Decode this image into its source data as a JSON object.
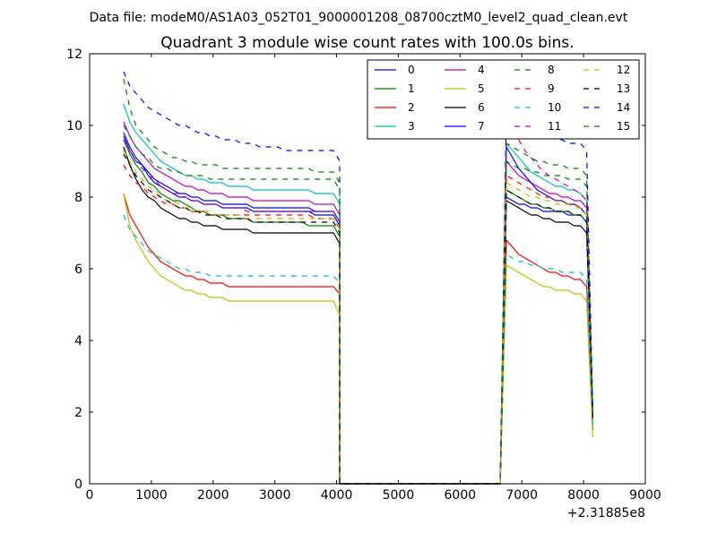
{
  "suptitle": "Data file: modeM0/AS1A03_052T01_9000001208_08700cztM0_level2_quad_clean.evt",
  "chart_data": {
    "type": "line",
    "title": "Quadrant 3 module wise count rates with 100.0s bins.",
    "xlabel": "",
    "ylabel": "",
    "xlim": [
      0,
      9000
    ],
    "ylim": [
      0,
      12
    ],
    "x_offset_text": "+2.31885e8",
    "x_ticks": [
      0,
      1000,
      2000,
      3000,
      4000,
      5000,
      6000,
      7000,
      8000,
      9000
    ],
    "x_tick_labels": [
      "0",
      "1000",
      "2000",
      "3000",
      "4000",
      "5000",
      "6000",
      "7000",
      "8000",
      "9000"
    ],
    "y_ticks": [
      0,
      2,
      4,
      6,
      8,
      10,
      12
    ],
    "y_tick_labels": [
      "0",
      "2",
      "4",
      "6",
      "8",
      "10",
      "12"
    ],
    "legend_position": "top-right",
    "legend_columns": 4,
    "time_grid": {
      "segment1": {
        "start": 550,
        "step": 100,
        "count": 36
      },
      "gap": {
        "start": 4050,
        "end": 6650,
        "value": 0
      },
      "segment2": {
        "start": 6650,
        "step": 100,
        "count": 15
      }
    },
    "series": [
      {
        "name": "0",
        "color": "#0000ff",
        "dash": "solid",
        "seg1": [
          9.7,
          9.3,
          9.0,
          8.9,
          8.6,
          8.4,
          8.3,
          8.2,
          8.1,
          8.0,
          8.0,
          7.9,
          7.9,
          7.8,
          7.8,
          7.8,
          7.7,
          7.7,
          7.7,
          7.7,
          7.7,
          7.6,
          7.6,
          7.6,
          7.6,
          7.6,
          7.6,
          7.6,
          7.6,
          7.6,
          7.6,
          7.5,
          7.5,
          7.5,
          7.5,
          7.2
        ],
        "seg2_start": 0,
        "seg2": [
          8.0,
          7.9,
          7.8,
          7.8,
          7.7,
          7.7,
          7.6,
          7.6,
          7.6,
          7.6,
          7.5,
          7.5,
          7.5,
          7.3,
          1.9
        ]
      },
      {
        "name": "1",
        "color": "#008000",
        "dash": "solid",
        "seg1": [
          9.6,
          9.2,
          8.9,
          8.7,
          8.4,
          8.3,
          8.1,
          8.0,
          7.9,
          7.9,
          7.8,
          7.7,
          7.6,
          7.6,
          7.5,
          7.5,
          7.5,
          7.4,
          7.4,
          7.4,
          7.4,
          7.3,
          7.3,
          7.3,
          7.3,
          7.3,
          7.3,
          7.3,
          7.3,
          7.3,
          7.2,
          7.2,
          7.2,
          7.2,
          7.2,
          6.9
        ],
        "seg2_start": 0,
        "seg2": [
          8.2,
          8.1,
          8.0,
          7.9,
          7.8,
          7.8,
          7.7,
          7.7,
          7.6,
          7.6,
          7.6,
          7.5,
          7.5,
          7.3,
          1.8
        ]
      },
      {
        "name": "2",
        "color": "#ff0000",
        "dash": "solid",
        "seg1": [
          8.1,
          7.5,
          7.2,
          6.9,
          6.6,
          6.4,
          6.2,
          6.1,
          6.0,
          5.9,
          5.8,
          5.8,
          5.7,
          5.7,
          5.6,
          5.6,
          5.6,
          5.5,
          5.5,
          5.5,
          5.5,
          5.5,
          5.5,
          5.5,
          5.5,
          5.5,
          5.5,
          5.5,
          5.5,
          5.5,
          5.5,
          5.5,
          5.5,
          5.5,
          5.5,
          5.3
        ],
        "seg2_start": 0,
        "seg2": [
          6.8,
          6.6,
          6.4,
          6.3,
          6.2,
          6.1,
          6.0,
          5.9,
          5.9,
          5.8,
          5.8,
          5.7,
          5.7,
          5.5,
          1.5
        ]
      },
      {
        "name": "3",
        "color": "#00bfbf",
        "dash": "solid",
        "seg1": [
          10.6,
          10.1,
          9.8,
          9.6,
          9.4,
          9.2,
          9.0,
          8.9,
          8.8,
          8.7,
          8.6,
          8.6,
          8.5,
          8.5,
          8.4,
          8.4,
          8.4,
          8.3,
          8.3,
          8.3,
          8.3,
          8.2,
          8.2,
          8.2,
          8.2,
          8.2,
          8.2,
          8.2,
          8.2,
          8.2,
          8.2,
          8.1,
          8.1,
          8.1,
          8.1,
          7.8
        ],
        "seg2_start": 0,
        "seg2": [
          9.5,
          9.3,
          9.1,
          8.9,
          8.7,
          8.6,
          8.5,
          8.4,
          8.3,
          8.3,
          8.2,
          8.2,
          8.1,
          7.9,
          2.0
        ]
      },
      {
        "name": "4",
        "color": "#bf00bf",
        "dash": "solid",
        "seg1": [
          10.1,
          9.7,
          9.4,
          9.2,
          9.0,
          8.8,
          8.7,
          8.6,
          8.5,
          8.4,
          8.3,
          8.3,
          8.2,
          8.2,
          8.1,
          8.1,
          8.1,
          8.0,
          8.0,
          8.0,
          8.0,
          7.9,
          7.9,
          7.9,
          7.9,
          7.9,
          7.9,
          7.9,
          7.9,
          7.9,
          7.9,
          7.8,
          7.8,
          7.8,
          7.8,
          7.5
        ],
        "seg2_start": 0,
        "seg2": [
          9.0,
          8.8,
          8.6,
          8.5,
          8.4,
          8.3,
          8.2,
          8.1,
          8.1,
          8.0,
          8.0,
          7.9,
          7.9,
          7.7,
          1.9
        ]
      },
      {
        "name": "5",
        "color": "#bfbf00",
        "dash": "solid",
        "seg1": [
          8.1,
          7.2,
          6.8,
          6.5,
          6.2,
          6.0,
          5.8,
          5.7,
          5.6,
          5.5,
          5.4,
          5.4,
          5.3,
          5.3,
          5.2,
          5.2,
          5.2,
          5.1,
          5.1,
          5.1,
          5.1,
          5.1,
          5.1,
          5.1,
          5.1,
          5.1,
          5.1,
          5.1,
          5.1,
          5.1,
          5.1,
          5.1,
          5.1,
          5.1,
          5.1,
          4.7
        ],
        "seg2_start": 0,
        "seg2": [
          6.1,
          6.0,
          5.9,
          5.8,
          5.7,
          5.6,
          5.5,
          5.5,
          5.4,
          5.4,
          5.4,
          5.3,
          5.3,
          5.1,
          1.3
        ]
      },
      {
        "name": "6",
        "color": "#000000",
        "dash": "solid",
        "seg1": [
          9.4,
          8.9,
          8.5,
          8.2,
          8.0,
          7.9,
          7.7,
          7.6,
          7.5,
          7.4,
          7.4,
          7.3,
          7.3,
          7.2,
          7.2,
          7.2,
          7.1,
          7.1,
          7.1,
          7.1,
          7.1,
          7.0,
          7.0,
          7.0,
          7.0,
          7.0,
          7.0,
          7.0,
          7.0,
          7.0,
          7.0,
          7.0,
          7.0,
          7.0,
          7.0,
          6.7
        ],
        "seg2_start": 0,
        "seg2": [
          7.9,
          7.8,
          7.7,
          7.6,
          7.5,
          7.5,
          7.4,
          7.4,
          7.3,
          7.3,
          7.3,
          7.2,
          7.2,
          7.0,
          1.8
        ]
      },
      {
        "name": "7",
        "color": "#0000ff",
        "dash": "solid",
        "seg1": [
          9.8,
          9.4,
          9.1,
          8.9,
          8.7,
          8.5,
          8.4,
          8.3,
          8.2,
          8.1,
          8.1,
          8.0,
          8.0,
          7.9,
          7.9,
          7.9,
          7.8,
          7.8,
          7.8,
          7.8,
          7.8,
          7.7,
          7.7,
          7.7,
          7.7,
          7.7,
          7.7,
          7.7,
          7.7,
          7.7,
          7.7,
          7.6,
          7.6,
          7.6,
          7.6,
          7.3
        ],
        "seg2_start": 0,
        "seg2": [
          9.4,
          9.1,
          8.8,
          8.6,
          8.4,
          8.2,
          8.1,
          8.0,
          7.9,
          7.9,
          7.8,
          7.8,
          7.7,
          7.5,
          1.9
        ]
      },
      {
        "name": "8",
        "color": "#008000",
        "dash": "dashed",
        "seg1": [
          10.0,
          9.7,
          9.4,
          9.2,
          9.1,
          8.9,
          8.8,
          8.8,
          8.7,
          8.7,
          8.6,
          8.6,
          8.6,
          8.6,
          8.5,
          8.5,
          8.5,
          8.5,
          8.5,
          8.5,
          8.5,
          8.5,
          8.5,
          8.5,
          8.5,
          8.5,
          8.5,
          8.5,
          8.5,
          8.5,
          8.5,
          8.5,
          8.5,
          8.5,
          8.5,
          8.2
        ],
        "seg2_start": 0,
        "seg2": [
          9.0,
          8.9,
          8.8,
          8.8,
          8.7,
          8.7,
          8.6,
          8.6,
          8.6,
          8.6,
          8.5,
          8.5,
          8.5,
          8.3,
          2.0
        ]
      },
      {
        "name": "9",
        "color": "#ff0000",
        "dash": "dashed",
        "seg1": [
          8.9,
          8.6,
          8.4,
          8.3,
          8.1,
          8.0,
          7.9,
          7.8,
          7.8,
          7.7,
          7.7,
          7.6,
          7.6,
          7.6,
          7.5,
          7.5,
          7.5,
          7.5,
          7.5,
          7.5,
          7.5,
          7.5,
          7.5,
          7.5,
          7.5,
          7.5,
          7.5,
          7.5,
          7.5,
          7.5,
          7.5,
          7.4,
          7.4,
          7.4,
          7.4,
          7.1
        ],
        "seg2_start": 0,
        "seg2": [
          8.6,
          8.5,
          8.4,
          8.3,
          8.2,
          8.1,
          8.0,
          8.0,
          7.9,
          7.9,
          7.8,
          7.8,
          7.7,
          7.5,
          1.8
        ]
      },
      {
        "name": "10",
        "color": "#00bfbf",
        "dash": "dashed",
        "seg1": [
          7.5,
          7.1,
          6.9,
          6.7,
          6.5,
          6.4,
          6.3,
          6.2,
          6.1,
          6.0,
          6.0,
          5.9,
          5.9,
          5.9,
          5.8,
          5.8,
          5.8,
          5.8,
          5.8,
          5.8,
          5.8,
          5.8,
          5.8,
          5.8,
          5.8,
          5.8,
          5.8,
          5.8,
          5.8,
          5.8,
          5.8,
          5.8,
          5.8,
          5.8,
          5.8,
          5.6
        ],
        "seg2_start": 0,
        "seg2": [
          6.4,
          6.3,
          6.2,
          6.2,
          6.1,
          6.1,
          6.0,
          6.0,
          6.0,
          5.9,
          5.9,
          5.9,
          5.9,
          5.7,
          1.6
        ]
      },
      {
        "name": "11",
        "color": "#bf00bf",
        "dash": "dashed",
        "seg1": [
          9.6,
          9.3,
          9.0,
          8.8,
          8.6,
          8.5,
          8.3,
          8.2,
          8.1,
          8.1,
          8.0,
          7.9,
          7.9,
          7.8,
          7.8,
          7.8,
          7.7,
          7.7,
          7.7,
          7.7,
          7.6,
          7.6,
          7.6,
          7.6,
          7.6,
          7.6,
          7.6,
          7.6,
          7.6,
          7.6,
          7.6,
          7.6,
          7.6,
          7.6,
          7.6,
          7.3
        ],
        "seg2_start": 0,
        "seg2": [
          10.2,
          9.9,
          9.6,
          9.3,
          9.1,
          8.9,
          8.7,
          8.6,
          8.5,
          8.4,
          8.3,
          8.2,
          8.1,
          7.9,
          2.0
        ]
      },
      {
        "name": "12",
        "color": "#bfbf00",
        "dash": "dashed",
        "seg1": [
          9.3,
          9.0,
          8.7,
          8.5,
          8.3,
          8.2,
          8.0,
          7.9,
          7.9,
          7.8,
          7.7,
          7.7,
          7.6,
          7.6,
          7.6,
          7.5,
          7.5,
          7.5,
          7.5,
          7.5,
          7.4,
          7.4,
          7.4,
          7.4,
          7.4,
          7.4,
          7.4,
          7.4,
          7.4,
          7.4,
          7.4,
          7.4,
          7.4,
          7.4,
          7.4,
          7.1
        ],
        "seg2_start": 0,
        "seg2": [
          8.4,
          8.3,
          8.2,
          8.1,
          8.0,
          8.0,
          7.9,
          7.9,
          7.8,
          7.8,
          7.8,
          7.7,
          7.7,
          7.5,
          1.8
        ]
      },
      {
        "name": "13",
        "color": "#000000",
        "dash": "dashed",
        "seg1": [
          9.2,
          8.9,
          8.6,
          8.4,
          8.2,
          8.1,
          8.0,
          7.9,
          7.8,
          7.7,
          7.7,
          7.6,
          7.6,
          7.5,
          7.5,
          7.5,
          7.4,
          7.4,
          7.4,
          7.4,
          7.4,
          7.3,
          7.3,
          7.3,
          7.3,
          7.3,
          7.3,
          7.3,
          7.3,
          7.3,
          7.3,
          7.3,
          7.3,
          7.3,
          7.3,
          7.0
        ],
        "seg2_start": 0,
        "seg2": [
          8.2,
          8.1,
          8.0,
          7.9,
          7.8,
          7.8,
          7.7,
          7.7,
          7.6,
          7.6,
          7.6,
          7.5,
          7.5,
          7.3,
          1.8
        ]
      },
      {
        "name": "14",
        "color": "#0000ff",
        "dash": "dashed",
        "seg1": [
          11.5,
          11.1,
          10.9,
          10.7,
          10.5,
          10.4,
          10.3,
          10.2,
          10.1,
          10.0,
          10.0,
          9.9,
          9.8,
          9.8,
          9.7,
          9.7,
          9.6,
          9.6,
          9.6,
          9.5,
          9.5,
          9.5,
          9.4,
          9.4,
          9.4,
          9.4,
          9.3,
          9.3,
          9.3,
          9.3,
          9.3,
          9.3,
          9.3,
          9.3,
          9.3,
          9.0
        ],
        "seg2_start": 0,
        "seg2": [
          10.4,
          10.2,
          10.1,
          10.0,
          9.9,
          9.8,
          9.7,
          9.7,
          9.6,
          9.6,
          9.5,
          9.5,
          9.5,
          9.3,
          2.0
        ]
      },
      {
        "name": "15",
        "color": "#008000",
        "dash": "dashed",
        "seg1": [
          11.3,
          10.5,
          10.0,
          9.8,
          9.6,
          9.4,
          9.3,
          9.2,
          9.1,
          9.1,
          9.0,
          9.0,
          8.9,
          8.9,
          8.9,
          8.9,
          8.8,
          8.8,
          8.8,
          8.8,
          8.8,
          8.8,
          8.8,
          8.8,
          8.8,
          8.8,
          8.8,
          8.8,
          8.8,
          8.8,
          8.8,
          8.7,
          8.7,
          8.7,
          8.7,
          8.4
        ],
        "seg2_start": 0,
        "seg2": [
          9.5,
          9.4,
          9.3,
          9.2,
          9.1,
          9.0,
          9.0,
          8.9,
          8.9,
          8.9,
          8.8,
          8.8,
          8.8,
          8.6,
          1.9
        ]
      }
    ]
  }
}
